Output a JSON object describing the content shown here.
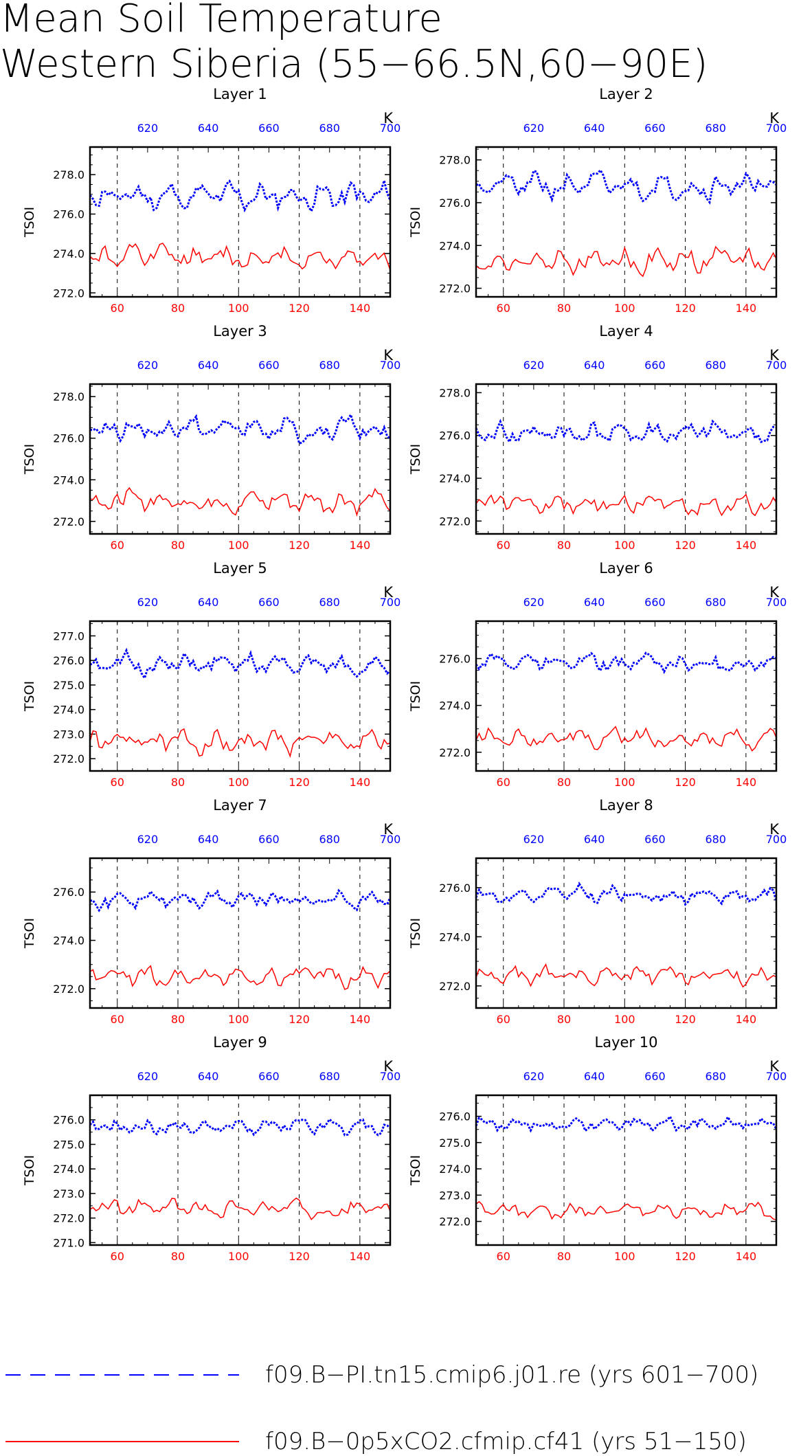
{
  "title_lines": [
    "Mean Soil Temperature",
    "Western Siberia (55−66.5N,60−90E)"
  ],
  "legend": [
    {
      "label": "f09.B−PI.tn15.cmip6.j01.re (yrs 601−700)",
      "color": "#0000ff",
      "style": "dashed"
    },
    {
      "label": "f09.B−0p5xCO2.cfmip.cf41 (yrs 51−150)",
      "color": "#ff0000",
      "style": "solid"
    }
  ],
  "chart_data": [
    {
      "type": "line",
      "title": "Layer 1",
      "ylabel": "TSOI",
      "top_axis_unit": "K",
      "ylim": [
        271.8,
        279.4
      ],
      "yticks": [
        "272.0",
        "274.0",
        "276.0",
        "278.0"
      ],
      "xlim_bottom": [
        51,
        150
      ],
      "xticks_bottom": [
        60,
        80,
        100,
        120,
        140
      ],
      "xlim_top": [
        601,
        700
      ],
      "xticks_top": [
        620,
        640,
        660,
        680,
        700
      ],
      "x_bottom_color": "#ff0000",
      "x_top_color": "#0000ff",
      "vertical_gridlines": [
        60,
        80,
        100,
        120,
        140
      ],
      "series": [
        {
          "name": "f09.B−PI.tn15.cmip6.j01.re (yrs 601−700)",
          "axis": "top",
          "color": "#0000ff",
          "mean": 276.9,
          "amp": 2.1,
          "seed": 11
        },
        {
          "name": "f09.B−0p5xCO2.cfmip.cf41 (yrs 51−150)",
          "axis": "bottom",
          "color": "#ff0000",
          "mean": 273.8,
          "amp": 2.0,
          "seed": 12
        }
      ]
    },
    {
      "type": "line",
      "title": "Layer 2",
      "ylabel": "TSOI",
      "top_axis_unit": "K",
      "ylim": [
        271.6,
        278.6
      ],
      "yticks": [
        "272.0",
        "274.0",
        "276.0",
        "278.0"
      ],
      "xlim_bottom": [
        51,
        150
      ],
      "xticks_bottom": [
        60,
        80,
        100,
        120,
        140
      ],
      "xlim_top": [
        601,
        700
      ],
      "xticks_top": [
        620,
        640,
        660,
        680,
        700
      ],
      "x_bottom_color": "#ff0000",
      "x_top_color": "#0000ff",
      "vertical_gridlines": [
        60,
        80,
        100,
        120,
        140
      ],
      "series": [
        {
          "name": "f09.B−PI.tn15.cmip6.j01.re (yrs 601−700)",
          "axis": "top",
          "color": "#0000ff",
          "mean": 276.8,
          "amp": 1.9,
          "seed": 21
        },
        {
          "name": "f09.B−0p5xCO2.cfmip.cf41 (yrs 51−150)",
          "axis": "bottom",
          "color": "#ff0000",
          "mean": 273.3,
          "amp": 1.8,
          "seed": 22
        }
      ]
    },
    {
      "type": "line",
      "title": "Layer 3",
      "ylabel": "TSOI",
      "top_axis_unit": "K",
      "ylim": [
        271.4,
        278.6
      ],
      "yticks": [
        "272.0",
        "274.0",
        "276.0",
        "278.0"
      ],
      "xlim_bottom": [
        51,
        150
      ],
      "xticks_bottom": [
        60,
        80,
        100,
        120,
        140
      ],
      "xlim_top": [
        601,
        700
      ],
      "xticks_top": [
        620,
        640,
        660,
        680,
        700
      ],
      "x_bottom_color": "#ff0000",
      "x_top_color": "#0000ff",
      "vertical_gridlines": [
        60,
        80,
        100,
        120,
        140
      ],
      "series": [
        {
          "name": "f09.B−PI.tn15.cmip6.j01.re (yrs 601−700)",
          "axis": "top",
          "color": "#0000ff",
          "mean": 276.4,
          "amp": 1.9,
          "seed": 31
        },
        {
          "name": "f09.B−0p5xCO2.cfmip.cf41 (yrs 51−150)",
          "axis": "bottom",
          "color": "#ff0000",
          "mean": 273.0,
          "amp": 1.8,
          "seed": 32
        }
      ]
    },
    {
      "type": "line",
      "title": "Layer 4",
      "ylabel": "TSOI",
      "top_axis_unit": "K",
      "ylim": [
        271.4,
        278.4
      ],
      "yticks": [
        "272.0",
        "274.0",
        "276.0",
        "278.0"
      ],
      "xlim_bottom": [
        51,
        150
      ],
      "xticks_bottom": [
        60,
        80,
        100,
        120,
        140
      ],
      "xlim_top": [
        601,
        700
      ],
      "xticks_top": [
        620,
        640,
        660,
        680,
        700
      ],
      "x_bottom_color": "#ff0000",
      "x_top_color": "#0000ff",
      "vertical_gridlines": [
        60,
        80,
        100,
        120,
        140
      ],
      "series": [
        {
          "name": "f09.B−PI.tn15.cmip6.j01.re (yrs 601−700)",
          "axis": "top",
          "color": "#0000ff",
          "mean": 276.1,
          "amp": 1.7,
          "seed": 41
        },
        {
          "name": "f09.B−0p5xCO2.cfmip.cf41 (yrs 51−150)",
          "axis": "bottom",
          "color": "#ff0000",
          "mean": 272.8,
          "amp": 1.6,
          "seed": 42
        }
      ]
    },
    {
      "type": "line",
      "title": "Layer 5",
      "ylabel": "TSOI",
      "top_axis_unit": "K",
      "ylim": [
        271.5,
        277.6
      ],
      "yticks": [
        "272.0",
        "273.0",
        "274.0",
        "275.0",
        "276.0",
        "277.0"
      ],
      "xlim_bottom": [
        51,
        150
      ],
      "xticks_bottom": [
        60,
        80,
        100,
        120,
        140
      ],
      "xlim_top": [
        601,
        700
      ],
      "xticks_top": [
        620,
        640,
        660,
        680,
        700
      ],
      "x_bottom_color": "#ff0000",
      "x_top_color": "#0000ff",
      "vertical_gridlines": [
        60,
        80,
        100,
        120,
        140
      ],
      "series": [
        {
          "name": "f09.B−PI.tn15.cmip6.j01.re (yrs 601−700)",
          "axis": "top",
          "color": "#0000ff",
          "mean": 275.8,
          "amp": 1.4,
          "seed": 51
        },
        {
          "name": "f09.B−0p5xCO2.cfmip.cf41 (yrs 51−150)",
          "axis": "bottom",
          "color": "#ff0000",
          "mean": 272.7,
          "amp": 1.5,
          "seed": 52
        }
      ]
    },
    {
      "type": "line",
      "title": "Layer 6",
      "ylabel": "TSOI",
      "top_axis_unit": "K",
      "ylim": [
        271.2,
        277.6
      ],
      "yticks": [
        "272.0",
        "274.0",
        "276.0"
      ],
      "xlim_bottom": [
        51,
        150
      ],
      "xticks_bottom": [
        60,
        80,
        100,
        120,
        140
      ],
      "xlim_top": [
        601,
        700
      ],
      "xticks_top": [
        620,
        640,
        660,
        680,
        700
      ],
      "x_bottom_color": "#ff0000",
      "x_top_color": "#0000ff",
      "vertical_gridlines": [
        60,
        80,
        100,
        120,
        140
      ],
      "series": [
        {
          "name": "f09.B−PI.tn15.cmip6.j01.re (yrs 601−700)",
          "axis": "top",
          "color": "#0000ff",
          "mean": 275.8,
          "amp": 1.3,
          "seed": 61
        },
        {
          "name": "f09.B−0p5xCO2.cfmip.cf41 (yrs 51−150)",
          "axis": "bottom",
          "color": "#ff0000",
          "mean": 272.6,
          "amp": 1.4,
          "seed": 62
        }
      ]
    },
    {
      "type": "line",
      "title": "Layer 7",
      "ylabel": "TSOI",
      "top_axis_unit": "K",
      "ylim": [
        271.2,
        277.4
      ],
      "yticks": [
        "272.0",
        "274.0",
        "276.0"
      ],
      "xlim_bottom": [
        51,
        150
      ],
      "xticks_bottom": [
        60,
        80,
        100,
        120,
        140
      ],
      "xlim_top": [
        601,
        700
      ],
      "xticks_top": [
        620,
        640,
        660,
        680,
        700
      ],
      "x_bottom_color": "#ff0000",
      "x_top_color": "#0000ff",
      "vertical_gridlines": [
        60,
        80,
        100,
        120,
        140
      ],
      "series": [
        {
          "name": "f09.B−PI.tn15.cmip6.j01.re (yrs 601−700)",
          "axis": "top",
          "color": "#0000ff",
          "mean": 275.7,
          "amp": 1.2,
          "seed": 71
        },
        {
          "name": "f09.B−0p5xCO2.cfmip.cf41 (yrs 51−150)",
          "axis": "bottom",
          "color": "#ff0000",
          "mean": 272.5,
          "amp": 1.3,
          "seed": 72
        }
      ]
    },
    {
      "type": "line",
      "title": "Layer 8",
      "ylabel": "TSOI",
      "top_axis_unit": "K",
      "ylim": [
        271.1,
        277.2
      ],
      "yticks": [
        "272.0",
        "274.0",
        "276.0"
      ],
      "xlim_bottom": [
        51,
        150
      ],
      "xticks_bottom": [
        60,
        80,
        100,
        120,
        140
      ],
      "xlim_top": [
        601,
        700
      ],
      "xticks_top": [
        620,
        640,
        660,
        680,
        700
      ],
      "x_bottom_color": "#ff0000",
      "x_top_color": "#0000ff",
      "vertical_gridlines": [
        60,
        80,
        100,
        120,
        140
      ],
      "series": [
        {
          "name": "f09.B−PI.tn15.cmip6.j01.re (yrs 601−700)",
          "axis": "top",
          "color": "#0000ff",
          "mean": 275.7,
          "amp": 1.1,
          "seed": 81
        },
        {
          "name": "f09.B−0p5xCO2.cfmip.cf41 (yrs 51−150)",
          "axis": "bottom",
          "color": "#ff0000",
          "mean": 272.4,
          "amp": 1.2,
          "seed": 82
        }
      ]
    },
    {
      "type": "line",
      "title": "Layer 9",
      "ylabel": "TSOI",
      "top_axis_unit": "K",
      "ylim": [
        270.9,
        277.0
      ],
      "yticks": [
        "271.0",
        "272.0",
        "273.0",
        "274.0",
        "275.0",
        "276.0"
      ],
      "xlim_bottom": [
        51,
        150
      ],
      "xticks_bottom": [
        60,
        80,
        100,
        120,
        140
      ],
      "xlim_top": [
        601,
        700
      ],
      "xticks_top": [
        620,
        640,
        660,
        680,
        700
      ],
      "x_bottom_color": "#ff0000",
      "x_top_color": "#0000ff",
      "vertical_gridlines": [
        60,
        80,
        100,
        120,
        140
      ],
      "series": [
        {
          "name": "f09.B−PI.tn15.cmip6.j01.re (yrs 601−700)",
          "axis": "top",
          "color": "#0000ff",
          "mean": 275.7,
          "amp": 1.0,
          "seed": 91
        },
        {
          "name": "f09.B−0p5xCO2.cfmip.cf41 (yrs 51−150)",
          "axis": "bottom",
          "color": "#ff0000",
          "mean": 272.4,
          "amp": 1.1,
          "seed": 92
        }
      ]
    },
    {
      "type": "line",
      "title": "Layer 10",
      "ylabel": "TSOI",
      "top_axis_unit": "K",
      "ylim": [
        271.1,
        276.8
      ],
      "yticks": [
        "272.0",
        "273.0",
        "274.0",
        "275.0",
        "276.0"
      ],
      "xlim_bottom": [
        51,
        150
      ],
      "xticks_bottom": [
        60,
        80,
        100,
        120,
        140
      ],
      "xlim_top": [
        601,
        700
      ],
      "xticks_top": [
        620,
        640,
        660,
        680,
        700
      ],
      "x_bottom_color": "#ff0000",
      "x_top_color": "#0000ff",
      "vertical_gridlines": [
        60,
        80,
        100,
        120,
        140
      ],
      "series": [
        {
          "name": "f09.B−PI.tn15.cmip6.j01.re (yrs 601−700)",
          "axis": "top",
          "color": "#0000ff",
          "mean": 275.7,
          "amp": 0.9,
          "seed": 101
        },
        {
          "name": "f09.B−0p5xCO2.cfmip.cf41 (yrs 51−150)",
          "axis": "bottom",
          "color": "#ff0000",
          "mean": 272.4,
          "amp": 1.0,
          "seed": 102
        }
      ]
    }
  ]
}
